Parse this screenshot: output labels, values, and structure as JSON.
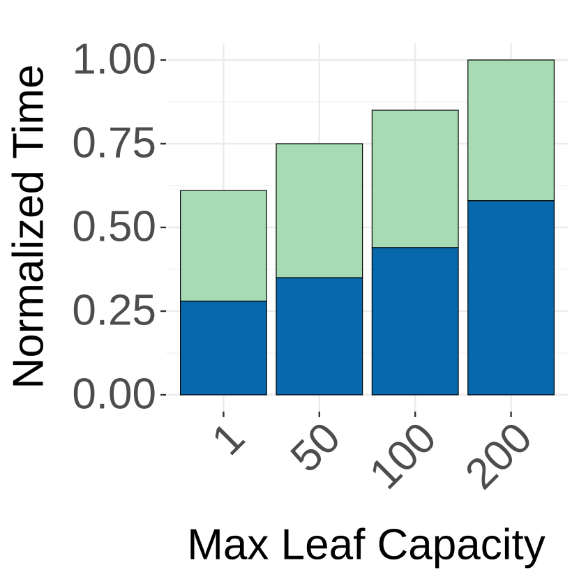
{
  "chart_data": {
    "type": "stacked_bar",
    "x_label": "Max Leaf Capacity",
    "y_label": "Normalized Time",
    "categories": [
      "1",
      "50",
      "100",
      "200"
    ],
    "series": [
      {
        "color": "#0868ac",
        "values": [
          0.28,
          0.35,
          0.44,
          0.58
        ]
      },
      {
        "color": "#a6dbb4",
        "values": [
          0.33,
          0.4,
          0.41,
          0.42
        ]
      }
    ],
    "ylim": [
      -0.05,
      1.05
    ],
    "yticks": [
      {
        "value": 0,
        "label": "0.00"
      },
      {
        "value": 0.25,
        "label": "0.25"
      },
      {
        "value": 0.5,
        "label": "0.50"
      },
      {
        "value": 0.75,
        "label": "0.75"
      },
      {
        "value": 1,
        "label": "1.00"
      }
    ],
    "grid": true
  }
}
